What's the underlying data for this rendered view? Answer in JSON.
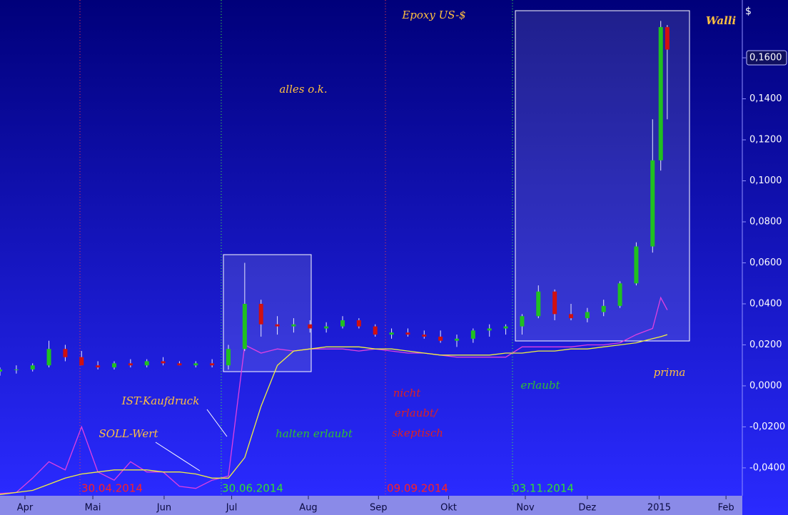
{
  "chart_data": {
    "type": "candlestick",
    "title": "Epoxy US-$",
    "brand": "Walli",
    "y_unit": "$",
    "x": [
      0,
      1,
      2,
      3,
      4,
      5,
      6,
      7,
      8,
      9,
      10,
      11,
      12,
      13,
      14,
      15,
      16,
      17,
      18,
      19,
      20,
      21,
      22,
      23,
      24,
      25,
      26,
      27,
      28,
      29,
      30,
      31,
      32,
      33,
      34,
      35,
      36,
      37,
      38,
      39,
      40,
      40.5,
      40.9
    ],
    "open": [
      0.007,
      0.008,
      0.008,
      0.01,
      0.018,
      0.014,
      0.01,
      0.009,
      0.011,
      0.01,
      0.012,
      0.011,
      0.01,
      0.011,
      0.01,
      0.018,
      0.04,
      0.03,
      0.029,
      0.03,
      0.028,
      0.029,
      0.032,
      0.029,
      0.025,
      0.026,
      0.025,
      0.024,
      0.022,
      0.023,
      0.027,
      0.028,
      0.029,
      0.034,
      0.046,
      0.035,
      0.033,
      0.036,
      0.039,
      0.05,
      0.068,
      0.11,
      0.175
    ],
    "high": [
      0.009,
      0.01,
      0.011,
      0.022,
      0.02,
      0.017,
      0.012,
      0.012,
      0.013,
      0.013,
      0.014,
      0.012,
      0.012,
      0.013,
      0.02,
      0.06,
      0.042,
      0.034,
      0.033,
      0.032,
      0.031,
      0.034,
      0.033,
      0.03,
      0.028,
      0.028,
      0.027,
      0.027,
      0.025,
      0.028,
      0.03,
      0.03,
      0.035,
      0.049,
      0.047,
      0.04,
      0.038,
      0.042,
      0.051,
      0.07,
      0.13,
      0.178,
      0.176
    ],
    "low": [
      0.005,
      0.006,
      0.007,
      0.009,
      0.012,
      0.01,
      0.008,
      0.008,
      0.009,
      0.009,
      0.01,
      0.01,
      0.009,
      0.009,
      0.008,
      0.017,
      0.024,
      0.025,
      0.026,
      0.026,
      0.026,
      0.028,
      0.028,
      0.024,
      0.023,
      0.024,
      0.023,
      0.021,
      0.019,
      0.021,
      0.024,
      0.025,
      0.025,
      0.033,
      0.032,
      0.032,
      0.031,
      0.034,
      0.038,
      0.049,
      0.065,
      0.105,
      0.13
    ],
    "close": [
      0.008,
      0.008,
      0.01,
      0.018,
      0.014,
      0.01,
      0.009,
      0.011,
      0.01,
      0.012,
      0.011,
      0.01,
      0.011,
      0.01,
      0.018,
      0.04,
      0.03,
      0.029,
      0.03,
      0.028,
      0.029,
      0.032,
      0.029,
      0.025,
      0.026,
      0.025,
      0.024,
      0.022,
      0.023,
      0.027,
      0.028,
      0.029,
      0.034,
      0.046,
      0.035,
      0.033,
      0.036,
      0.039,
      0.05,
      0.068,
      0.11,
      0.175,
      0.164
    ],
    "up_color": "#20c020",
    "down_color": "#d01010",
    "series": [
      {
        "name": "IST-Kaufdruck",
        "color": "#e040e0",
        "values": [
          -0.0525,
          -0.052,
          -0.045,
          -0.037,
          -0.041,
          -0.02,
          -0.042,
          -0.046,
          -0.037,
          -0.042,
          -0.042,
          -0.049,
          -0.05,
          -0.046,
          -0.044,
          0.02,
          0.016,
          0.018,
          0.017,
          0.018,
          0.018,
          0.018,
          0.017,
          0.018,
          0.017,
          0.016,
          0.016,
          0.015,
          0.014,
          0.014,
          0.014,
          0.014,
          0.019,
          0.019,
          0.019,
          0.019,
          0.02,
          0.02,
          0.021,
          0.025,
          0.028,
          0.043,
          0.037
        ]
      },
      {
        "name": "SOLL-Wert",
        "color": "#f0f040",
        "values": [
          -0.053,
          -0.052,
          -0.051,
          -0.048,
          -0.045,
          -0.043,
          -0.042,
          -0.041,
          -0.041,
          -0.041,
          -0.042,
          -0.042,
          -0.043,
          -0.045,
          -0.045,
          -0.035,
          -0.01,
          0.01,
          0.017,
          0.018,
          0.019,
          0.019,
          0.019,
          0.018,
          0.018,
          0.017,
          0.016,
          0.015,
          0.015,
          0.015,
          0.015,
          0.016,
          0.016,
          0.017,
          0.017,
          0.018,
          0.018,
          0.019,
          0.02,
          0.021,
          0.023,
          0.024,
          0.025
        ]
      }
    ],
    "xlim": [
      0,
      45.5
    ],
    "xticks": [
      {
        "value": 1.53,
        "label": "Apr"
      },
      {
        "value": 5.69,
        "label": "Mai"
      },
      {
        "value": 10.06,
        "label": "Jun"
      },
      {
        "value": 14.2,
        "label": "Jul"
      },
      {
        "value": 18.9,
        "label": "Aug"
      },
      {
        "value": 23.2,
        "label": "Sep"
      },
      {
        "value": 27.5,
        "label": "Okt"
      },
      {
        "value": 32.2,
        "label": "Nov"
      },
      {
        "value": 36.0,
        "label": "Dez"
      },
      {
        "value": 40.4,
        "label": "2015"
      },
      {
        "value": 44.5,
        "label": "Feb"
      }
    ],
    "ylim": [
      -0.0536,
      0.1882
    ],
    "yticks": [
      {
        "value": -0.04,
        "label": "-0,0400"
      },
      {
        "value": -0.02,
        "label": "-0,0200"
      },
      {
        "value": 0,
        "label": "0,0000"
      },
      {
        "value": 0.02,
        "label": "0,0200"
      },
      {
        "value": 0.04,
        "label": "0,0400"
      },
      {
        "value": 0.06,
        "label": "0,0600"
      },
      {
        "value": 0.08,
        "label": "0,0800"
      },
      {
        "value": 0.1,
        "label": "0,1000"
      },
      {
        "value": 0.12,
        "label": "0,1200"
      },
      {
        "value": 0.14,
        "label": "0,1400"
      },
      {
        "value": 0.16,
        "label": "0,1600"
      }
    ],
    "annotations": [
      {
        "text": "alles o.k.",
        "color": "#ffc040"
      },
      {
        "text": "halten erlaubt",
        "color": "#30c030"
      },
      {
        "text": "nicht",
        "color": "#e02020"
      },
      {
        "text": "erlaubt/",
        "color": "#e02020"
      },
      {
        "text": "skeptisch",
        "color": "#e02020"
      },
      {
        "text": "erlaubt",
        "color": "#30c030"
      },
      {
        "text": "prima",
        "color": "#ffc040"
      },
      {
        "text": "30.04.2014",
        "color": "#ff2020"
      },
      {
        "text": "30.06.2014",
        "color": "#30e030"
      },
      {
        "text": "09.09.2014",
        "color": "#ff2020"
      },
      {
        "text": "03.11.2014",
        "color": "#30e030"
      }
    ]
  }
}
